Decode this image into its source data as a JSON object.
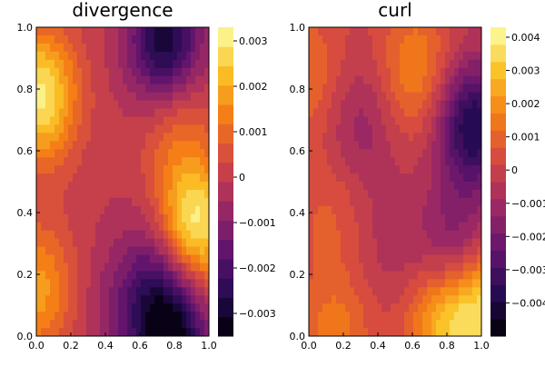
{
  "chart_data": [
    {
      "type": "heatmap",
      "title": "divergence",
      "x_ticks": [
        0.0,
        0.2,
        0.4,
        0.6,
        0.8,
        1.0
      ],
      "y_ticks": [
        0.0,
        0.2,
        0.4,
        0.6,
        0.8,
        1.0
      ],
      "x_tick_labels": [
        "0.0",
        "0.2",
        "0.4",
        "0.6",
        "0.8",
        "1.0"
      ],
      "y_tick_labels": [
        "0.0",
        "0.2",
        "0.4",
        "0.6",
        "0.8",
        "1.0"
      ],
      "xlim": [
        0,
        1
      ],
      "ylim": [
        0,
        1
      ],
      "colorscale": "inferno",
      "colorbar_range": [
        -0.0035,
        0.0033
      ],
      "colorbar_ticks": [
        -0.003,
        -0.002,
        -0.001,
        0,
        0.001,
        0.002,
        0.003
      ],
      "colorbar_tick_labels": [
        "−0.003",
        "−0.002",
        "−0.001",
        "0",
        "0.001",
        "0.002",
        "0.003"
      ],
      "levels": 16,
      "features": [
        {
          "x": 0.75,
          "y": 0.94,
          "value": -0.0032
        },
        {
          "x": 0.91,
          "y": 0.36,
          "value": 0.0032
        },
        {
          "x": 0.02,
          "y": 0.78,
          "value": 0.003
        },
        {
          "x": 0.8,
          "y": 0.72,
          "value": 0.0012
        },
        {
          "x": 0.5,
          "y": 0.08,
          "value": -0.0008
        },
        {
          "x": 0.7,
          "y": 0.22,
          "value": -0.0012
        },
        {
          "x": 0.78,
          "y": 0.0,
          "value": -0.0034
        },
        {
          "x": 0.0,
          "y": 0.15,
          "value": 0.0018
        }
      ]
    },
    {
      "type": "heatmap",
      "title": "curl",
      "x_ticks": [
        0.0,
        0.2,
        0.4,
        0.6,
        0.8,
        1.0
      ],
      "y_ticks": [
        0.0,
        0.2,
        0.4,
        0.6,
        0.8,
        1.0
      ],
      "x_tick_labels": [
        "0.0",
        "0.2",
        "0.4",
        "0.6",
        "0.8",
        "1.0"
      ],
      "y_tick_labels": [
        "0.0",
        "0.2",
        "0.4",
        "0.6",
        "0.8",
        "1.0"
      ],
      "xlim": [
        0,
        1
      ],
      "ylim": [
        0,
        1
      ],
      "colorscale": "inferno",
      "colorbar_range": [
        -0.005,
        0.0043
      ],
      "colorbar_ticks": [
        -0.004,
        -0.003,
        -0.002,
        -0.001,
        0,
        0.001,
        0.002,
        0.003,
        0.004
      ],
      "colorbar_tick_labels": [
        "−0.004",
        "−0.003",
        "−0.002",
        "−0.001",
        "0",
        "0.001",
        "0.002",
        "0.003",
        "0.004"
      ],
      "levels": 18,
      "features": [
        {
          "x": 0.62,
          "y": 0.86,
          "value": 0.0018
        },
        {
          "x": 0.95,
          "y": 0.68,
          "value": -0.004
        },
        {
          "x": 0.3,
          "y": 0.68,
          "value": -0.0012
        },
        {
          "x": 0.12,
          "y": 0.4,
          "value": 0.0008
        },
        {
          "x": 0.86,
          "y": 0.25,
          "value": -0.0025
        },
        {
          "x": 0.78,
          "y": 0.06,
          "value": 0.0028
        },
        {
          "x": 1.0,
          "y": 0.1,
          "value": 0.0035
        },
        {
          "x": 0.15,
          "y": 0.0,
          "value": 0.0015
        },
        {
          "x": 0.0,
          "y": 0.85,
          "value": 0.0012
        },
        {
          "x": 0.5,
          "y": 0.3,
          "value": -0.0007
        }
      ]
    }
  ]
}
